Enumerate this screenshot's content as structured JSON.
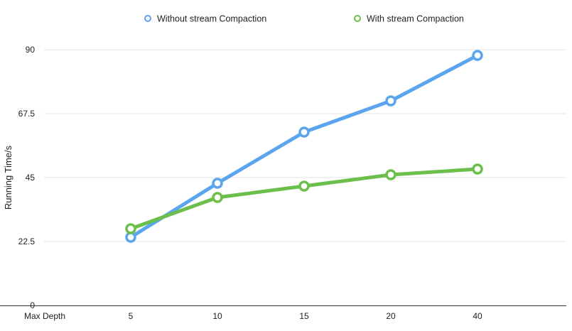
{
  "chart_data": {
    "type": "line",
    "title": "",
    "xlabel": "Max Depth",
    "ylabel": "Running Time/s",
    "categories": [
      "5",
      "10",
      "15",
      "20",
      "40"
    ],
    "yticks": [
      "0",
      "22.5",
      "45",
      "67.5",
      "90"
    ],
    "ylim": [
      0,
      90
    ],
    "grid": true,
    "legend_position": "top-center",
    "series": [
      {
        "name": "Without stream Compaction",
        "color": "#5aa5ee",
        "values": [
          24,
          43,
          61,
          72,
          88
        ]
      },
      {
        "name": "With stream Compaction",
        "color": "#6cbf4a",
        "values": [
          27,
          38,
          42,
          46,
          48
        ]
      }
    ]
  }
}
